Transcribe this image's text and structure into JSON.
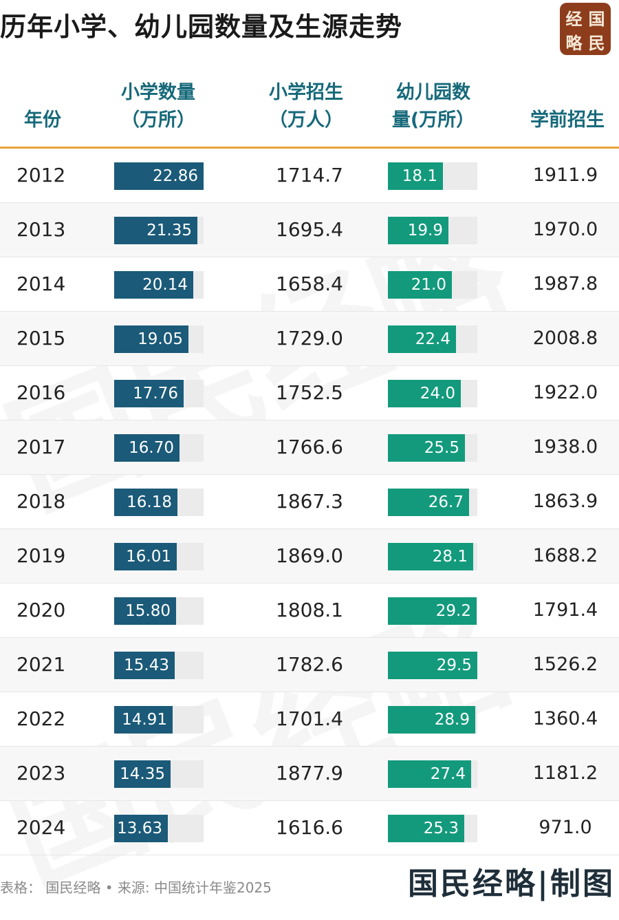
{
  "title": "历年小学、幼儿园数量及生源走势",
  "seal": [
    "经",
    "国",
    "略",
    "民"
  ],
  "watermark": "国民经略",
  "columns": {
    "year": "年份",
    "schools": [
      "小学数量",
      "（万所）"
    ],
    "enroll": [
      "小学招生",
      "（万人）"
    ],
    "kinder": [
      "幼儿园数",
      "量(万所）"
    ],
    "preschool": "学前招生"
  },
  "colors": {
    "schools_bar": "#1b5a78",
    "kinder_bar": "#139a7c",
    "header_text": "#16697a",
    "header_rule": "#e8a33b"
  },
  "footer": {
    "source": "表格： 国民经略 • 来源: 中国统计年鉴2025",
    "brand": "国民经略|制图"
  },
  "chart_data": {
    "type": "table",
    "rows": [
      {
        "year": "2012",
        "schools": "22.86",
        "enroll": "1714.7",
        "kinder": "18.1",
        "preschool": "1911.9"
      },
      {
        "year": "2013",
        "schools": "21.35",
        "enroll": "1695.4",
        "kinder": "19.9",
        "preschool": "1970.0"
      },
      {
        "year": "2014",
        "schools": "20.14",
        "enroll": "1658.4",
        "kinder": "21.0",
        "preschool": "1987.8"
      },
      {
        "year": "2015",
        "schools": "19.05",
        "enroll": "1729.0",
        "kinder": "22.4",
        "preschool": "2008.8"
      },
      {
        "year": "2016",
        "schools": "17.76",
        "enroll": "1752.5",
        "kinder": "24.0",
        "preschool": "1922.0"
      },
      {
        "year": "2017",
        "schools": "16.70",
        "enroll": "1766.6",
        "kinder": "25.5",
        "preschool": "1938.0"
      },
      {
        "year": "2018",
        "schools": "16.18",
        "enroll": "1867.3",
        "kinder": "26.7",
        "preschool": "1863.9"
      },
      {
        "year": "2019",
        "schools": "16.01",
        "enroll": "1869.0",
        "kinder": "28.1",
        "preschool": "1688.2"
      },
      {
        "year": "2020",
        "schools": "15.80",
        "enroll": "1808.1",
        "kinder": "29.2",
        "preschool": "1791.4"
      },
      {
        "year": "2021",
        "schools": "15.43",
        "enroll": "1782.6",
        "kinder": "29.5",
        "preschool": "1526.2"
      },
      {
        "year": "2022",
        "schools": "14.91",
        "enroll": "1701.4",
        "kinder": "28.9",
        "preschool": "1360.4"
      },
      {
        "year": "2023",
        "schools": "14.35",
        "enroll": "1877.9",
        "kinder": "27.4",
        "preschool": "1181.2"
      },
      {
        "year": "2024",
        "schools": "13.63",
        "enroll": "1616.6",
        "kinder": "25.3",
        "preschool": "971.0"
      }
    ]
  }
}
